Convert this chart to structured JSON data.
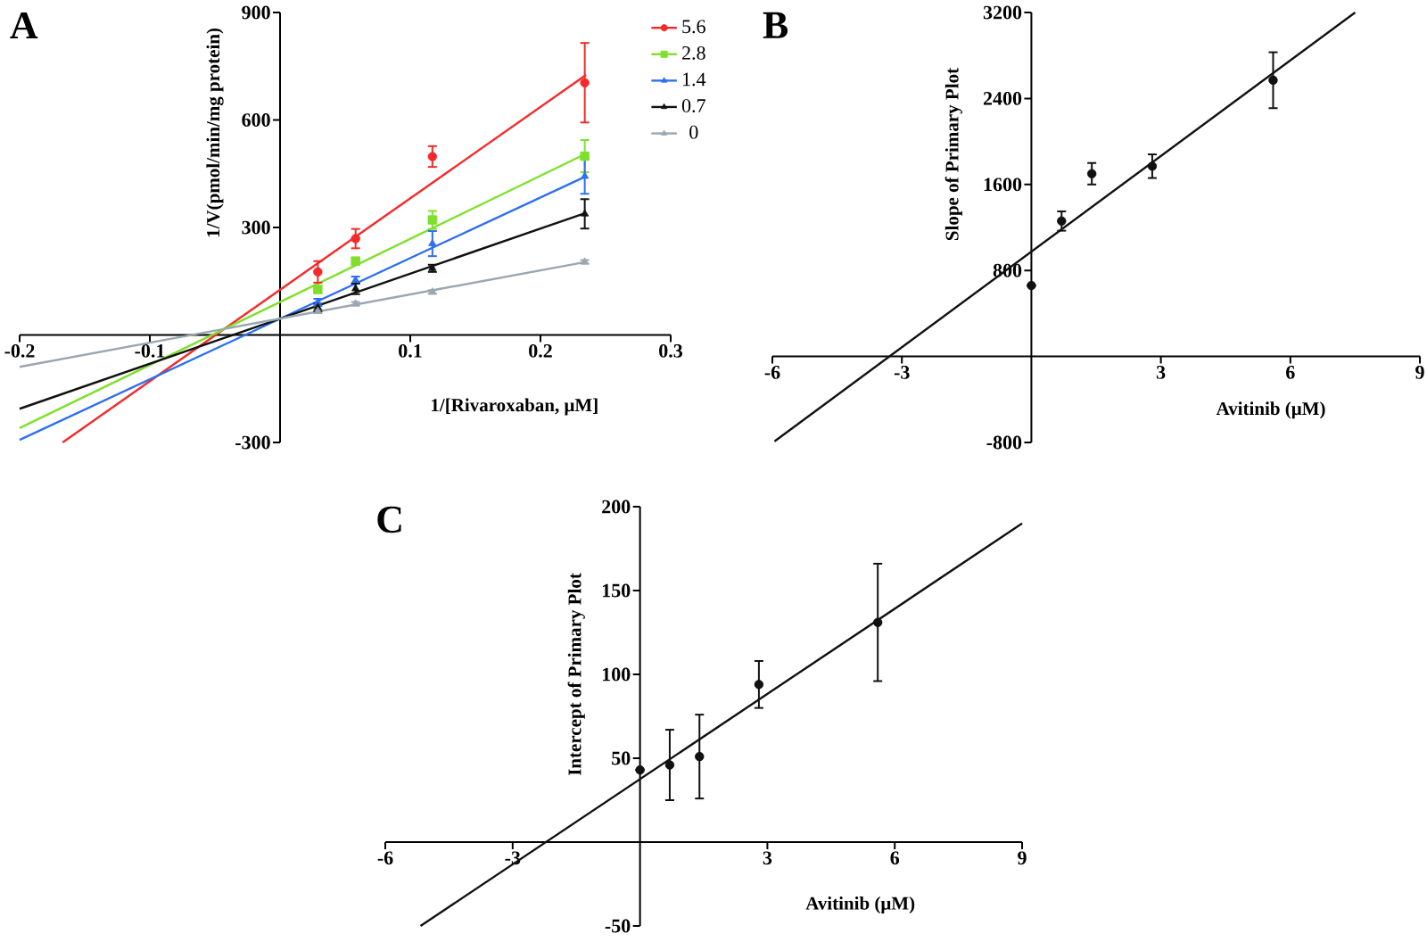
{
  "chart_data": [
    {
      "type": "scatter",
      "title": "A",
      "xlabel": "1/[Rivaroxaban, μM]",
      "ylabel": "1/V(pmol/min/mg protein)",
      "xlim": [
        -0.2,
        0.3
      ],
      "ylim": [
        -300,
        900
      ],
      "xticks": [
        -0.2,
        -0.1,
        0.1,
        0.2,
        0.3
      ],
      "yticks": [
        -300,
        300,
        600,
        900
      ],
      "legend": "top right",
      "x": [
        0.029,
        0.058,
        0.117,
        0.234
      ],
      "series": [
        {
          "name": "5.6",
          "color": "#f42a2a",
          "marker": "circle",
          "values": [
            176,
            269,
            498,
            704
          ],
          "errors": [
            30,
            27,
            29,
            111
          ]
        },
        {
          "name": "2.8",
          "color": "#7ee02c",
          "marker": "square",
          "values": [
            127,
            206,
            321,
            499
          ],
          "errors": [
            10,
            10,
            25,
            45
          ]
        },
        {
          "name": "1.4",
          "color": "#2f6ff0",
          "marker": "triangle",
          "values": [
            91,
            153,
            255,
            443
          ],
          "errors": [
            10,
            10,
            35,
            49
          ]
        },
        {
          "name": "0.7",
          "color": "#111111",
          "marker": "triangle",
          "values": [
            77,
            129,
            186,
            338
          ],
          "errors": [
            10,
            15,
            10,
            41
          ]
        },
        {
          "name": "0",
          "color": "#9aa7b0",
          "marker": "triangle",
          "values": [
            66,
            87,
            120,
            204
          ],
          "errors": [
            5,
            5,
            5,
            5
          ]
        },
        {
          "type": "line",
          "color": "#f42a2a",
          "x": [
            -0.167,
            0.235
          ],
          "values": [
            -300,
            726
          ]
        },
        {
          "type": "line",
          "color": "#7ee02c",
          "x": [
            -0.2,
            0.235
          ],
          "values": [
            -260,
            506
          ]
        },
        {
          "type": "line",
          "color": "#2f6ff0",
          "x": [
            -0.2,
            0.235
          ],
          "values": [
            -293,
            443
          ]
        },
        {
          "type": "line",
          "color": "#111111",
          "x": [
            -0.2,
            0.235
          ],
          "values": [
            -206,
            341
          ]
        },
        {
          "type": "line",
          "color": "#9aa7b0",
          "x": [
            -0.2,
            0.235
          ],
          "values": [
            -89,
            204
          ]
        }
      ]
    },
    {
      "type": "scatter",
      "title": "B",
      "xlabel": "Avitinib (μM)",
      "ylabel": "Slope of Primary Plot",
      "xlim": [
        -6,
        9
      ],
      "ylim": [
        -800,
        3200
      ],
      "xticks": [
        -6,
        -3,
        3,
        6,
        9
      ],
      "yticks": [
        -800,
        800,
        1600,
        2400,
        3200
      ],
      "x": [
        0,
        0.7,
        1.4,
        2.8,
        5.6
      ],
      "series": [
        {
          "color": "#111111",
          "marker": "circle",
          "values": [
            660,
            1260,
            1700,
            1770,
            2570
          ],
          "errors": [
            0,
            90,
            100,
            110,
            260
          ]
        },
        {
          "type": "line",
          "color": "#111111",
          "x": [
            -5.95,
            7.5
          ],
          "values": [
            -790,
            3200
          ]
        }
      ]
    },
    {
      "type": "scatter",
      "title": "C",
      "xlabel": "Avitinib (μM)",
      "ylabel": "Intercept of Primary Plot",
      "xlim": [
        -6,
        9
      ],
      "ylim": [
        -50,
        200
      ],
      "xticks": [
        -6,
        -3,
        3,
        6,
        9
      ],
      "yticks": [
        -50,
        50,
        100,
        150,
        200
      ],
      "x": [
        0,
        0.7,
        1.4,
        2.8,
        5.6
      ],
      "series": [
        {
          "color": "#111111",
          "marker": "circle",
          "values": [
            43,
            46,
            51,
            94,
            131
          ],
          "errors": [
            0,
            21,
            25,
            14,
            35
          ]
        },
        {
          "type": "line",
          "color": "#111111",
          "x": [
            -5.17,
            9
          ],
          "values": [
            -50,
            190
          ]
        }
      ]
    }
  ]
}
